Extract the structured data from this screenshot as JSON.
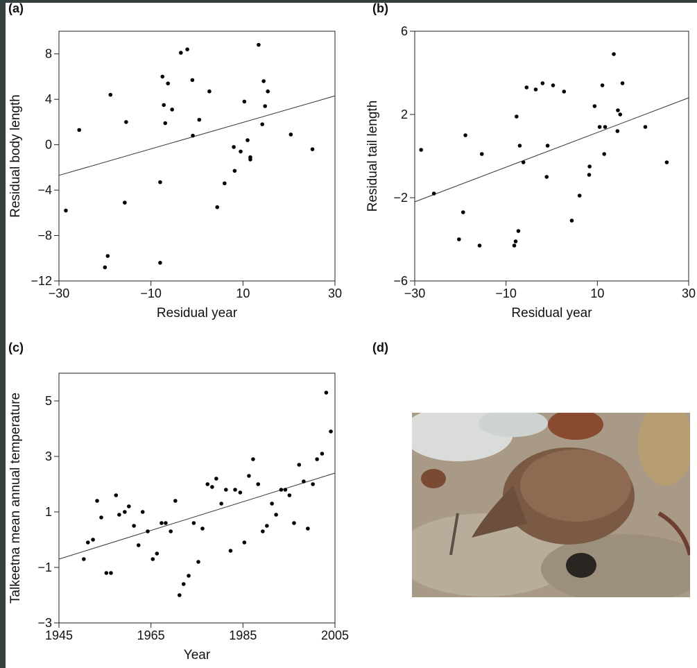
{
  "chart_data": [
    {
      "type": "scatter",
      "panel_label": "(a)",
      "x_label": "Residual year",
      "y_label": "Residual body length",
      "color": "#000000",
      "xlim": [
        -30,
        30
      ],
      "ylim": [
        -12,
        10
      ],
      "xticks": [
        {
          "value": -30,
          "label": "−30"
        },
        {
          "value": -10,
          "label": "−10"
        },
        10,
        30
      ],
      "yticks": [
        {
          "value": -12,
          "label": "−12"
        },
        {
          "value": -8,
          "label": "−8"
        },
        {
          "value": -4,
          "label": "−4"
        },
        0,
        4,
        8
      ],
      "x": [
        -28.5,
        -25.6,
        -20.0,
        -19.4,
        -18.8,
        -15.7,
        -15.4,
        -8.0,
        -8.0,
        -7.5,
        -7.2,
        -6.9,
        -6.3,
        -5.4,
        -3.5,
        -2.1,
        -1.0,
        -0.9,
        0.5,
        2.7,
        4.4,
        6.0,
        8.0,
        8.2,
        9.5,
        10.3,
        11.0,
        11.6,
        11.6,
        13.4,
        14.2,
        14.5,
        14.8,
        15.4,
        20.4,
        25.1
      ],
      "y": [
        -5.8,
        1.3,
        -10.8,
        -9.8,
        4.4,
        -5.1,
        2.0,
        -3.3,
        -10.4,
        6.0,
        3.5,
        1.9,
        5.4,
        3.1,
        8.1,
        8.4,
        5.7,
        0.8,
        2.2,
        4.7,
        -5.5,
        -3.4,
        -0.2,
        -2.3,
        -0.6,
        3.8,
        0.4,
        -1.1,
        -1.3,
        8.8,
        1.8,
        5.6,
        3.4,
        4.7,
        0.9,
        -0.4
      ],
      "trend_x": [
        -30,
        30
      ],
      "trend_y": [
        -2.7,
        4.3
      ]
    },
    {
      "type": "scatter",
      "panel_label": "(b)",
      "x_label": "Residual year",
      "y_label": "Residual tail length",
      "color": "#000000",
      "xlim": [
        -30,
        30
      ],
      "ylim": [
        -6,
        6
      ],
      "xticks": [
        {
          "value": -30,
          "label": "−30"
        },
        {
          "value": -10,
          "label": "−10"
        },
        10,
        30
      ],
      "yticks": [
        {
          "value": -6,
          "label": "−6"
        },
        {
          "value": -2,
          "label": "−2"
        },
        2,
        6
      ],
      "x": [
        -28.6,
        -25.8,
        -20.3,
        -19.4,
        -18.9,
        -15.8,
        -15.3,
        -8.2,
        -7.9,
        -7.7,
        -7.3,
        -7.0,
        -6.2,
        -5.5,
        -3.5,
        -2.0,
        -1.1,
        -0.9,
        0.3,
        2.7,
        4.4,
        6.1,
        8.2,
        8.3,
        9.4,
        10.5,
        11.1,
        11.5,
        11.7,
        13.6,
        14.4,
        14.5,
        15.0,
        15.5,
        20.5,
        25.2
      ],
      "y": [
        0.3,
        -1.8,
        -4.0,
        -2.7,
        1.0,
        -4.3,
        0.1,
        -4.3,
        -4.1,
        1.9,
        -3.6,
        0.5,
        -0.3,
        3.3,
        3.2,
        3.5,
        -1.0,
        0.5,
        3.4,
        3.1,
        -3.1,
        -1.9,
        -0.9,
        -0.5,
        2.4,
        1.4,
        3.4,
        0.1,
        1.4,
        4.9,
        1.2,
        2.2,
        2.0,
        3.5,
        1.4,
        -0.3
      ],
      "trend_x": [
        -30,
        30
      ],
      "trend_y": [
        -2.2,
        2.8
      ]
    },
    {
      "type": "scatter",
      "panel_label": "(c)",
      "x_label": "Year",
      "y_label": "Talkeetna mean annual temperature",
      "color": "#000000",
      "xlim": [
        1945,
        2005
      ],
      "ylim": [
        -3,
        6
      ],
      "xticks": [
        1945,
        1965,
        1985,
        2005
      ],
      "yticks": [
        {
          "value": -3,
          "label": "−3"
        },
        {
          "value": -1,
          "label": "−1"
        },
        1,
        3,
        5
      ],
      "x": [
        1950.4,
        1951.3,
        1952.4,
        1953.3,
        1954.2,
        1955.3,
        1956.3,
        1957.4,
        1958.1,
        1959.3,
        1960.2,
        1961.3,
        1962.3,
        1963.2,
        1964.3,
        1965.4,
        1966.3,
        1967.3,
        1968.2,
        1969.3,
        1970.3,
        1971.2,
        1972.1,
        1973.2,
        1974.3,
        1975.3,
        1976.2,
        1977.3,
        1978.3,
        1979.2,
        1980.3,
        1981.3,
        1982.3,
        1983.3,
        1984.4,
        1985.3,
        1986.3,
        1987.2,
        1988.3,
        1989.3,
        1990.2,
        1991.3,
        1992.2,
        1993.3,
        1994.2,
        1995.1,
        1996.1,
        1997.2,
        1998.2,
        1999.1,
        2000.2,
        2001.1,
        2002.2,
        2003.1,
        2004.1
      ],
      "y": [
        -0.7,
        -0.1,
        0.0,
        1.4,
        0.8,
        -1.2,
        -1.2,
        1.6,
        0.9,
        1.0,
        1.2,
        0.5,
        -0.2,
        1.0,
        0.3,
        -0.7,
        -0.5,
        0.6,
        0.6,
        0.3,
        1.4,
        -2.0,
        -1.6,
        -1.3,
        0.6,
        -0.8,
        0.4,
        2.0,
        1.9,
        2.2,
        1.3,
        1.8,
        -0.4,
        1.8,
        1.7,
        -0.1,
        2.3,
        2.9,
        2.0,
        0.3,
        0.5,
        1.3,
        0.9,
        1.8,
        1.8,
        1.6,
        0.6,
        2.7,
        2.1,
        0.4,
        2.0,
        2.9,
        3.1,
        5.3,
        3.9
      ],
      "trend_x": [
        1945,
        2005
      ],
      "trend_y": [
        -0.7,
        2.4
      ]
    }
  ],
  "photo": {
    "panel_label": "(d)"
  }
}
